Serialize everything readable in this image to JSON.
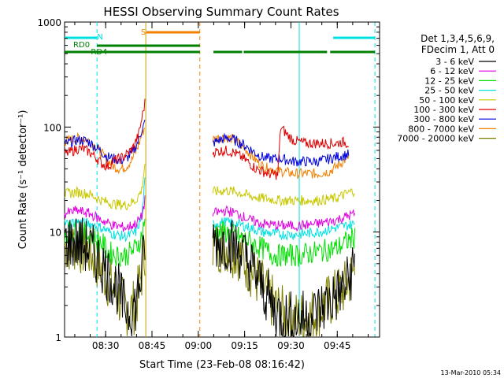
{
  "chart_data": {
    "type": "line",
    "title": "HESSI Observing Summary Count Rates",
    "xlabel": "Start Time (23-Feb-08 08:16:42)",
    "ylabel": "Count Rate (s⁻¹ detector⁻¹)",
    "ylog": true,
    "ylim": [
      1,
      1000
    ],
    "xlim_minutes": [
      0,
      102
    ],
    "x_ticks": [
      {
        "m": 13.3,
        "label": "08:30"
      },
      {
        "m": 28.3,
        "label": "08:45"
      },
      {
        "m": 43.3,
        "label": "09:00"
      },
      {
        "m": 58.3,
        "label": "09:15"
      },
      {
        "m": 73.3,
        "label": "09:30"
      },
      {
        "m": 88.3,
        "label": "09:45"
      }
    ],
    "y_ticks": [
      {
        "v": 1,
        "label": "1"
      },
      {
        "v": 10,
        "label": "10"
      },
      {
        "v": 100,
        "label": "100"
      },
      {
        "v": 1000,
        "label": "1000"
      }
    ],
    "legend_header": [
      "Det 1,3,4,5,6,9,",
      "FDecim 1, Att 0"
    ],
    "legend_position": "right",
    "footer": "13-Mar-2010 05:34",
    "series": [
      {
        "name": "3 - 6 keV",
        "color": "#000000",
        "seg1": [
          [
            0,
            8
          ],
          [
            4,
            8
          ],
          [
            8,
            7
          ],
          [
            12,
            5
          ],
          [
            14,
            4
          ],
          [
            17,
            3
          ],
          [
            19,
            2
          ],
          [
            21,
            1.8
          ],
          [
            23,
            2
          ],
          [
            24,
            3
          ],
          [
            25,
            4
          ],
          [
            26,
            8
          ]
        ],
        "seg2": [
          [
            48,
            8
          ],
          [
            52,
            8
          ],
          [
            56,
            7
          ],
          [
            60,
            5
          ],
          [
            64,
            3
          ],
          [
            68,
            1.8
          ],
          [
            72,
            1.5
          ],
          [
            76,
            1.5
          ],
          [
            80,
            1.6
          ],
          [
            84,
            2
          ],
          [
            88,
            2.5
          ],
          [
            91,
            3
          ],
          [
            94,
            5
          ]
        ]
      },
      {
        "name": "6 - 12 keV",
        "color": "#e000e0",
        "seg1": [
          [
            0,
            15
          ],
          [
            4,
            16
          ],
          [
            8,
            15
          ],
          [
            12,
            13
          ],
          [
            16,
            11.5
          ],
          [
            20,
            11
          ],
          [
            23,
            12
          ],
          [
            25,
            14
          ],
          [
            26,
            20
          ]
        ],
        "seg2": [
          [
            48,
            15
          ],
          [
            52,
            16
          ],
          [
            56,
            15
          ],
          [
            60,
            13
          ],
          [
            64,
            12
          ],
          [
            70,
            11.5
          ],
          [
            76,
            11.5
          ],
          [
            82,
            12
          ],
          [
            88,
            13
          ],
          [
            94,
            15
          ]
        ]
      },
      {
        "name": "12 - 25 keV",
        "color": "#00e000",
        "seg1": [
          [
            0,
            10
          ],
          [
            4,
            10
          ],
          [
            8,
            9.5
          ],
          [
            12,
            8
          ],
          [
            14,
            6.5
          ],
          [
            17,
            6
          ],
          [
            20,
            6
          ],
          [
            23,
            7
          ],
          [
            25,
            9
          ],
          [
            26,
            14
          ]
        ],
        "seg2": [
          [
            48,
            10
          ],
          [
            52,
            10
          ],
          [
            56,
            9
          ],
          [
            60,
            8
          ],
          [
            64,
            7
          ],
          [
            68,
            6
          ],
          [
            76,
            6
          ],
          [
            82,
            6.5
          ],
          [
            88,
            7
          ],
          [
            91,
            8
          ],
          [
            94,
            9
          ]
        ]
      },
      {
        "name": "25 - 50 keV",
        "color": "#00e0e0",
        "seg1": [
          [
            0,
            12
          ],
          [
            4,
            12.5
          ],
          [
            8,
            12
          ],
          [
            12,
            11
          ],
          [
            16,
            9.5
          ],
          [
            20,
            9
          ],
          [
            23,
            10
          ],
          [
            25,
            14
          ],
          [
            26,
            30
          ]
        ],
        "seg2": [
          [
            48,
            12
          ],
          [
            52,
            12.5
          ],
          [
            56,
            12
          ],
          [
            60,
            11
          ],
          [
            64,
            10
          ],
          [
            70,
            9.5
          ],
          [
            76,
            9.5
          ],
          [
            82,
            10
          ],
          [
            88,
            11
          ],
          [
            94,
            12
          ]
        ]
      },
      {
        "name": "50 - 100 keV",
        "color": "#c8c800",
        "seg1": [
          [
            0,
            23
          ],
          [
            4,
            24
          ],
          [
            8,
            23
          ],
          [
            12,
            20
          ],
          [
            16,
            18.5
          ],
          [
            20,
            18
          ],
          [
            23,
            20
          ],
          [
            25,
            25
          ],
          [
            26,
            45
          ]
        ],
        "seg2": [
          [
            48,
            24
          ],
          [
            52,
            25
          ],
          [
            56,
            24
          ],
          [
            60,
            22
          ],
          [
            64,
            21
          ],
          [
            70,
            20
          ],
          [
            76,
            20
          ],
          [
            82,
            20
          ],
          [
            88,
            21
          ],
          [
            91,
            23
          ],
          [
            94,
            25
          ]
        ]
      },
      {
        "name": "100 - 300 keV",
        "color": "#e00000",
        "seg1": [
          [
            0,
            55
          ],
          [
            2,
            58
          ],
          [
            4,
            62
          ],
          [
            6,
            62
          ],
          [
            8,
            58
          ],
          [
            10,
            52
          ],
          [
            12,
            45
          ],
          [
            14,
            42
          ],
          [
            16,
            48
          ],
          [
            18,
            50
          ],
          [
            20,
            55
          ],
          [
            22,
            62
          ],
          [
            24,
            85
          ],
          [
            25,
            120
          ],
          [
            26,
            170
          ]
        ],
        "seg2": [
          [
            48,
            58
          ],
          [
            52,
            60
          ],
          [
            55,
            57
          ],
          [
            58,
            50
          ],
          [
            60,
            45
          ],
          [
            62,
            40
          ],
          [
            64,
            38
          ],
          [
            66,
            36
          ],
          [
            69,
            35
          ],
          [
            70,
            100
          ],
          [
            72,
            85
          ],
          [
            74,
            75
          ],
          [
            78,
            70
          ],
          [
            84,
            70
          ],
          [
            88,
            70
          ],
          [
            90,
            72
          ],
          [
            92,
            70
          ]
        ]
      },
      {
        "name": "300 - 800 keV",
        "color": "#0000e0",
        "seg1": [
          [
            0,
            68
          ],
          [
            2,
            72
          ],
          [
            4,
            75
          ],
          [
            6,
            75
          ],
          [
            8,
            72
          ],
          [
            10,
            65
          ],
          [
            12,
            58
          ],
          [
            14,
            52
          ],
          [
            16,
            50
          ],
          [
            18,
            48
          ],
          [
            20,
            50
          ],
          [
            22,
            57
          ],
          [
            24,
            75
          ],
          [
            25,
            95
          ],
          [
            26,
            110
          ]
        ],
        "seg2": [
          [
            48,
            70
          ],
          [
            50,
            75
          ],
          [
            52,
            78
          ],
          [
            54,
            78
          ],
          [
            56,
            72
          ],
          [
            58,
            68
          ],
          [
            60,
            62
          ],
          [
            62,
            56
          ],
          [
            64,
            52
          ],
          [
            66,
            50
          ],
          [
            70,
            50
          ],
          [
            74,
            47
          ],
          [
            78,
            47
          ],
          [
            82,
            47
          ],
          [
            86,
            50
          ],
          [
            88,
            52
          ],
          [
            92,
            55
          ]
        ]
      },
      {
        "name": "800 - 7000 keV",
        "color": "#f08000",
        "seg1": [
          [
            0,
            72
          ],
          [
            2,
            76
          ],
          [
            4,
            78
          ],
          [
            6,
            78
          ],
          [
            8,
            74
          ],
          [
            10,
            65
          ],
          [
            12,
            56
          ],
          [
            14,
            48
          ],
          [
            16,
            42
          ],
          [
            18,
            40
          ],
          [
            20,
            42
          ],
          [
            22,
            50
          ],
          [
            24,
            68
          ],
          [
            25,
            85
          ],
          [
            26,
            100
          ]
        ],
        "seg2": [
          [
            48,
            76
          ],
          [
            50,
            80
          ],
          [
            52,
            80
          ],
          [
            54,
            78
          ],
          [
            56,
            72
          ],
          [
            58,
            64
          ],
          [
            60,
            56
          ],
          [
            62,
            48
          ],
          [
            64,
            43
          ],
          [
            66,
            40
          ],
          [
            70,
            38
          ],
          [
            74,
            36
          ],
          [
            78,
            36
          ],
          [
            82,
            36
          ],
          [
            86,
            38
          ],
          [
            88,
            42
          ],
          [
            92,
            52
          ]
        ]
      },
      {
        "name": "7000 - 20000 keV",
        "color": "#808000",
        "seg1": [
          [
            0,
            7.5
          ],
          [
            4,
            7.5
          ],
          [
            8,
            6.5
          ],
          [
            12,
            4.5
          ],
          [
            14,
            3.5
          ],
          [
            17,
            2.5
          ],
          [
            19,
            2
          ],
          [
            21,
            1.8
          ],
          [
            23,
            2
          ],
          [
            24,
            2.8
          ],
          [
            25,
            4
          ],
          [
            26,
            7
          ]
        ],
        "seg2": [
          [
            48,
            7.5
          ],
          [
            52,
            7.5
          ],
          [
            56,
            6.5
          ],
          [
            60,
            4.5
          ],
          [
            64,
            3
          ],
          [
            68,
            2
          ],
          [
            72,
            1.5
          ],
          [
            76,
            1.5
          ],
          [
            80,
            1.6
          ],
          [
            84,
            2
          ],
          [
            88,
            2.5
          ],
          [
            91,
            3
          ],
          [
            94,
            4.5
          ]
        ]
      }
    ],
    "annotations": {
      "flag_labels": [
        {
          "text": "N",
          "color": "#00e0e0",
          "m": 11.5
        },
        {
          "text": "S",
          "color": "#f08000",
          "m": 25.5
        },
        {
          "text": "RD0",
          "color": "#008000",
          "m": 5.5
        },
        {
          "text": "RD4",
          "color": "#008000",
          "m": 11.2
        }
      ],
      "night_bars": [
        [
          0,
          10.5
        ],
        [
          87,
          100.5
        ]
      ],
      "saa_bar": [
        26.5,
        43.8
      ],
      "rd0_bars": [
        [
          0,
          43.8
        ],
        [
          48.2,
          57.5
        ],
        [
          58,
          85
        ],
        [
          86,
          100.5
        ]
      ],
      "rd4_bars": [
        [
          10.5,
          43.8
        ]
      ],
      "vlines": [
        {
          "m": 10.5,
          "color": "#00e0e0",
          "dash": true
        },
        {
          "m": 26.3,
          "color": "#c8a000",
          "dash": false
        },
        {
          "m": 43.8,
          "color": "#f08000",
          "dash": true
        },
        {
          "m": 76.0,
          "color": "#00e0e0",
          "dash": false
        },
        {
          "m": 100.5,
          "color": "#00e0e0",
          "dash": true
        }
      ]
    }
  }
}
